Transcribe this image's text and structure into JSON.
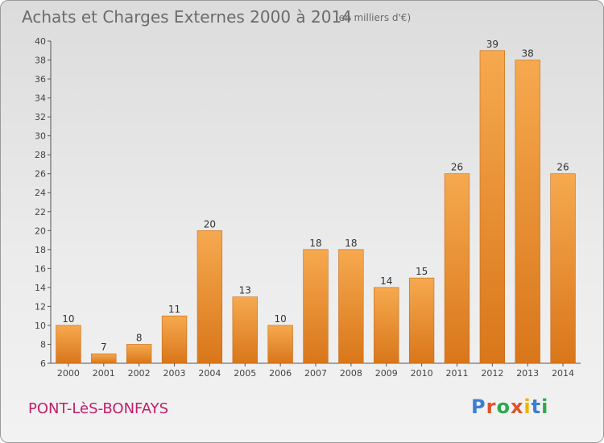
{
  "header": {
    "title": "Achats et Charges Externes 2000 à 2014",
    "unit": "(en milliers d'€)"
  },
  "footer": {
    "commune": "PONT-LèS-BONFAYS",
    "logo_text": "Proxiti"
  },
  "colors": {
    "bar_light": "#f6a94f",
    "bar_dark": "#d9761a",
    "bar_border": "#c86a16",
    "commune": "#c0206b"
  },
  "chart_data": {
    "type": "bar",
    "title": "Achats et Charges Externes 2000 à 2014",
    "subtitle": "(en milliers d'€)",
    "xlabel": "",
    "ylabel": "",
    "categories": [
      "2000",
      "2001",
      "2002",
      "2003",
      "2004",
      "2005",
      "2006",
      "2007",
      "2008",
      "2009",
      "2010",
      "2011",
      "2012",
      "2013",
      "2014"
    ],
    "values": [
      10,
      7,
      8,
      11,
      20,
      13,
      10,
      18,
      18,
      14,
      15,
      26,
      39,
      38,
      26
    ],
    "ylim": [
      6,
      40
    ],
    "yticks": [
      6,
      8,
      10,
      12,
      14,
      16,
      18,
      20,
      22,
      24,
      26,
      28,
      30,
      32,
      34,
      36,
      38,
      40
    ],
    "grid": false,
    "legend": "none"
  }
}
